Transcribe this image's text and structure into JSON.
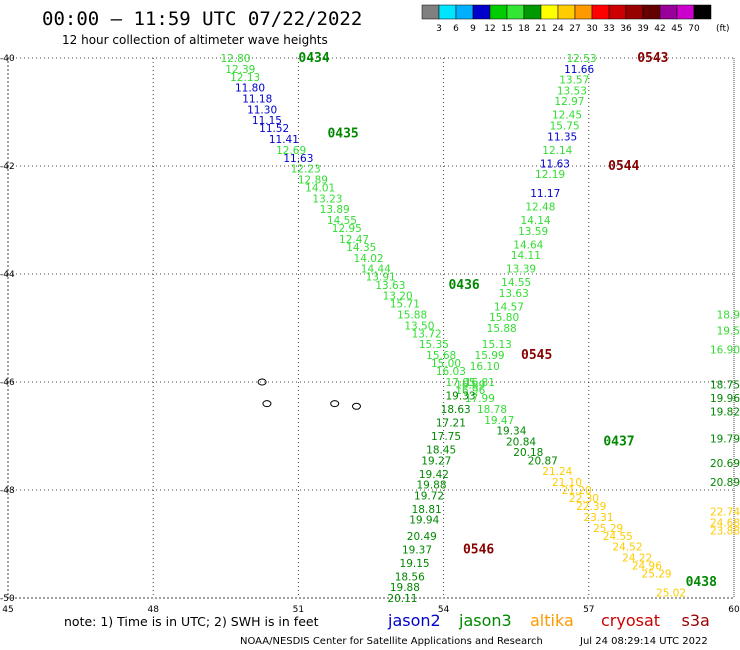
{
  "title": "00:00 – 11:59 UTC 07/22/2022",
  "subtitle": "12 hour collection of altimeter wave heights",
  "colorbar": {
    "ticks": [
      "3",
      "6",
      "9",
      "12",
      "15",
      "18",
      "21",
      "24",
      "27",
      "30",
      "33",
      "36",
      "39",
      "42",
      "45",
      "70"
    ],
    "unit": "(ft)",
    "colors": [
      "#808080",
      "#00e5ff",
      "#00b0ff",
      "#0000cc",
      "#00cc00",
      "#32e632",
      "#009900",
      "#ffff00",
      "#ffcc00",
      "#ff9900",
      "#ff0000",
      "#cc0000",
      "#990000",
      "#660000",
      "#990099",
      "#cc00cc",
      "#000000"
    ]
  },
  "axes": {
    "lat_labels": [
      "-40",
      "-42",
      "-44",
      "-46",
      "-48",
      "-50"
    ],
    "lon_labels": [
      "45",
      "48",
      "51",
      "54",
      "57",
      "60"
    ]
  },
  "note": "note: 1) Time is in UTC; 2) SWH is in feet",
  "satellites": [
    {
      "name": "jason2",
      "color": "#0000cc"
    },
    {
      "name": "jason3",
      "color": "#008800"
    },
    {
      "name": "altika",
      "color": "#ff9900"
    },
    {
      "name": "cryosat",
      "color": "#cc0000"
    },
    {
      "name": "s3a",
      "color": "#990000"
    }
  ],
  "footer": {
    "credit": "NOAA/NESDIS Center for Satellite Applications and Research",
    "timestamp": "Jul 24 08:29:14 UTC 2022"
  },
  "chart_data": {
    "type": "scatter",
    "passes": [
      {
        "label": "0434",
        "lat": -40.0,
        "lon": 51.0,
        "color": "#008800"
      },
      {
        "label": "0435",
        "lat": -41.4,
        "lon": 51.6,
        "color": "#008800"
      },
      {
        "label": "0436",
        "lat": -44.2,
        "lon": 54.1,
        "color": "#008800"
      },
      {
        "label": "0437",
        "lat": -47.1,
        "lon": 57.3,
        "color": "#008800"
      },
      {
        "label": "0438",
        "lat": -49.7,
        "lon": 59.0,
        "color": "#008800"
      },
      {
        "label": "0543",
        "lat": -40.0,
        "lon": 58.0,
        "color": "#880000"
      },
      {
        "label": "0544",
        "lat": -42.0,
        "lon": 57.4,
        "color": "#880000"
      },
      {
        "label": "0545",
        "lat": -45.5,
        "lon": 55.6,
        "color": "#880000"
      },
      {
        "label": "0546",
        "lat": -49.1,
        "lon": 54.4,
        "color": "#880000"
      }
    ],
    "points": [
      {
        "v": "12.80",
        "lat": -40.0,
        "lon": 49.7,
        "c": "#33dd33"
      },
      {
        "v": "12.39",
        "lat": -40.2,
        "lon": 49.8,
        "c": "#33dd33"
      },
      {
        "v": "12.13",
        "lat": -40.35,
        "lon": 49.9,
        "c": "#33dd33"
      },
      {
        "v": "11.80",
        "lat": -40.55,
        "lon": 50.0,
        "c": "#0000cc"
      },
      {
        "v": "11.18",
        "lat": -40.75,
        "lon": 50.15,
        "c": "#0000cc"
      },
      {
        "v": "11.30",
        "lat": -40.95,
        "lon": 50.25,
        "c": "#0000cc"
      },
      {
        "v": "11.15",
        "lat": -41.15,
        "lon": 50.35,
        "c": "#0000cc"
      },
      {
        "v": "11.52",
        "lat": -41.3,
        "lon": 50.5,
        "c": "#0000cc"
      },
      {
        "v": "11.41",
        "lat": -41.5,
        "lon": 50.7,
        "c": "#0000cc"
      },
      {
        "v": "12.69",
        "lat": -41.7,
        "lon": 50.85,
        "c": "#33dd33"
      },
      {
        "v": "11.63",
        "lat": -41.85,
        "lon": 51.0,
        "c": "#0000cc"
      },
      {
        "v": "12.23",
        "lat": -42.05,
        "lon": 51.15,
        "c": "#33dd33"
      },
      {
        "v": "12.89",
        "lat": -42.25,
        "lon": 51.3,
        "c": "#33dd33"
      },
      {
        "v": "14.01",
        "lat": -42.4,
        "lon": 51.45,
        "c": "#33dd33"
      },
      {
        "v": "13.23",
        "lat": -42.6,
        "lon": 51.6,
        "c": "#33dd33"
      },
      {
        "v": "13.89",
        "lat": -42.8,
        "lon": 51.75,
        "c": "#33dd33"
      },
      {
        "v": "14.55",
        "lat": -43.0,
        "lon": 51.9,
        "c": "#33dd33"
      },
      {
        "v": "12.95",
        "lat": -43.15,
        "lon": 52.0,
        "c": "#33dd33"
      },
      {
        "v": "12.47",
        "lat": -43.35,
        "lon": 52.15,
        "c": "#33dd33"
      },
      {
        "v": "14.35",
        "lat": -43.5,
        "lon": 52.3,
        "c": "#33dd33"
      },
      {
        "v": "14.02",
        "lat": -43.7,
        "lon": 52.45,
        "c": "#33dd33"
      },
      {
        "v": "14.44",
        "lat": -43.9,
        "lon": 52.6,
        "c": "#33dd33"
      },
      {
        "v": "13.91",
        "lat": -44.05,
        "lon": 52.7,
        "c": "#33dd33"
      },
      {
        "v": "13.63",
        "lat": -44.2,
        "lon": 52.9,
        "c": "#33dd33"
      },
      {
        "v": "13.20",
        "lat": -44.4,
        "lon": 53.05,
        "c": "#33dd33"
      },
      {
        "v": "15.71",
        "lat": -44.55,
        "lon": 53.2,
        "c": "#33dd33"
      },
      {
        "v": "15.88",
        "lat": -44.75,
        "lon": 53.35,
        "c": "#33dd33"
      },
      {
        "v": "13.50",
        "lat": -44.95,
        "lon": 53.5,
        "c": "#33dd33"
      },
      {
        "v": "13.72",
        "lat": -45.1,
        "lon": 53.65,
        "c": "#33dd33"
      },
      {
        "v": "15.35",
        "lat": -45.3,
        "lon": 53.8,
        "c": "#33dd33"
      },
      {
        "v": "15.68",
        "lat": -45.5,
        "lon": 53.95,
        "c": "#33dd33"
      },
      {
        "v": "15.00",
        "lat": -45.65,
        "lon": 54.05,
        "c": "#33dd33"
      },
      {
        "v": "16.03",
        "lat": -45.8,
        "lon": 54.15,
        "c": "#33dd33"
      },
      {
        "v": "17.05",
        "lat": -46.0,
        "lon": 54.35,
        "c": "#33dd33"
      },
      {
        "v": "16.96",
        "lat": -46.15,
        "lon": 54.55,
        "c": "#33dd33"
      },
      {
        "v": "17.99",
        "lat": -46.3,
        "lon": 54.75,
        "c": "#33dd33"
      },
      {
        "v": "18.78",
        "lat": -46.5,
        "lon": 55.0,
        "c": "#33dd33"
      },
      {
        "v": "19.47",
        "lat": -46.7,
        "lon": 55.15,
        "c": "#33dd33"
      },
      {
        "v": "19.34",
        "lat": -46.9,
        "lon": 55.4,
        "c": "#008800"
      },
      {
        "v": "20.84",
        "lat": -47.1,
        "lon": 55.6,
        "c": "#008800"
      },
      {
        "v": "20.18",
        "lat": -47.3,
        "lon": 55.75,
        "c": "#008800"
      },
      {
        "v": "20.87",
        "lat": -47.45,
        "lon": 56.05,
        "c": "#008800"
      },
      {
        "v": "21.24",
        "lat": -47.65,
        "lon": 56.35,
        "c": "#ffcc00"
      },
      {
        "v": "21.10",
        "lat": -47.85,
        "lon": 56.55,
        "c": "#ffcc00"
      },
      {
        "v": "21.20",
        "lat": -48.0,
        "lon": 56.75,
        "c": "#ffcc00"
      },
      {
        "v": "22.30",
        "lat": -48.15,
        "lon": 56.9,
        "c": "#ffcc00"
      },
      {
        "v": "22.39",
        "lat": -48.3,
        "lon": 57.05,
        "c": "#ffcc00"
      },
      {
        "v": "23.31",
        "lat": -48.5,
        "lon": 57.2,
        "c": "#ffcc00"
      },
      {
        "v": "25.29",
        "lat": -48.7,
        "lon": 57.4,
        "c": "#ffcc00"
      },
      {
        "v": "24.55",
        "lat": -48.85,
        "lon": 57.6,
        "c": "#ffcc00"
      },
      {
        "v": "24.52",
        "lat": -49.05,
        "lon": 57.8,
        "c": "#ffcc00"
      },
      {
        "v": "24.22",
        "lat": -49.25,
        "lon": 58.0,
        "c": "#ffcc00"
      },
      {
        "v": "24.96",
        "lat": -49.4,
        "lon": 58.2,
        "c": "#ffcc00"
      },
      {
        "v": "25.29",
        "lat": -49.55,
        "lon": 58.4,
        "c": "#ffcc00"
      },
      {
        "v": "25.02",
        "lat": -49.9,
        "lon": 58.7,
        "c": "#ffcc00"
      },
      {
        "v": "12.53",
        "lat": -40.0,
        "lon": 56.85,
        "c": "#33dd33"
      },
      {
        "v": "11.66",
        "lat": -40.2,
        "lon": 56.8,
        "c": "#0000cc"
      },
      {
        "v": "13.57",
        "lat": -40.4,
        "lon": 56.7,
        "c": "#33dd33"
      },
      {
        "v": "13.53",
        "lat": -40.6,
        "lon": 56.65,
        "c": "#33dd33"
      },
      {
        "v": "12.97",
        "lat": -40.8,
        "lon": 56.6,
        "c": "#33dd33"
      },
      {
        "v": "12.45",
        "lat": -41.05,
        "lon": 56.55,
        "c": "#33dd33"
      },
      {
        "v": "15.75",
        "lat": -41.25,
        "lon": 56.5,
        "c": "#33dd33"
      },
      {
        "v": "11.35",
        "lat": -41.45,
        "lon": 56.45,
        "c": "#0000cc"
      },
      {
        "v": "12.14",
        "lat": -41.7,
        "lon": 56.35,
        "c": "#33dd33"
      },
      {
        "v": "11.63",
        "lat": -41.95,
        "lon": 56.3,
        "c": "#0000cc"
      },
      {
        "v": "12.19",
        "lat": -42.15,
        "lon": 56.2,
        "c": "#33dd33"
      },
      {
        "v": "11.17",
        "lat": -42.5,
        "lon": 56.1,
        "c": "#0000cc"
      },
      {
        "v": "12.48",
        "lat": -42.75,
        "lon": 56.0,
        "c": "#33dd33"
      },
      {
        "v": "14.14",
        "lat": -43.0,
        "lon": 55.9,
        "c": "#33dd33"
      },
      {
        "v": "13.59",
        "lat": -43.2,
        "lon": 55.85,
        "c": "#33dd33"
      },
      {
        "v": "14.64",
        "lat": -43.45,
        "lon": 55.75,
        "c": "#33dd33"
      },
      {
        "v": "14.11",
        "lat": -43.65,
        "lon": 55.7,
        "c": "#33dd33"
      },
      {
        "v": "13.39",
        "lat": -43.9,
        "lon": 55.6,
        "c": "#33dd33"
      },
      {
        "v": "14.55",
        "lat": -44.15,
        "lon": 55.5,
        "c": "#33dd33"
      },
      {
        "v": "13.63",
        "lat": -44.35,
        "lon": 55.45,
        "c": "#33dd33"
      },
      {
        "v": "14.57",
        "lat": -44.6,
        "lon": 55.35,
        "c": "#33dd33"
      },
      {
        "v": "15.80",
        "lat": -44.8,
        "lon": 55.25,
        "c": "#33dd33"
      },
      {
        "v": "15.88",
        "lat": -45.0,
        "lon": 55.2,
        "c": "#33dd33"
      },
      {
        "v": "15.13",
        "lat": -45.3,
        "lon": 55.1,
        "c": "#33dd33"
      },
      {
        "v": "15.99",
        "lat": -45.5,
        "lon": 54.95,
        "c": "#33dd33"
      },
      {
        "v": "16.10",
        "lat": -45.7,
        "lon": 54.85,
        "c": "#33dd33"
      },
      {
        "v": "16.81",
        "lat": -46.0,
        "lon": 54.75,
        "c": "#33dd33"
      },
      {
        "v": "16.89",
        "lat": -46.05,
        "lon": 54.55,
        "c": "#33dd33"
      },
      {
        "v": "19.33",
        "lat": -46.25,
        "lon": 54.35,
        "c": "#008800"
      },
      {
        "v": "18.63",
        "lat": -46.5,
        "lon": 54.25,
        "c": "#008800"
      },
      {
        "v": "17.21",
        "lat": -46.75,
        "lon": 54.15,
        "c": "#008800"
      },
      {
        "v": "17.75",
        "lat": -47.0,
        "lon": 54.05,
        "c": "#008800"
      },
      {
        "v": "18.45",
        "lat": -47.25,
        "lon": 53.95,
        "c": "#008800"
      },
      {
        "v": "19.27",
        "lat": -47.45,
        "lon": 53.85,
        "c": "#008800"
      },
      {
        "v": "19.42",
        "lat": -47.7,
        "lon": 53.8,
        "c": "#008800"
      },
      {
        "v": "19.88",
        "lat": -47.9,
        "lon": 53.75,
        "c": "#008800"
      },
      {
        "v": "19.72",
        "lat": -48.1,
        "lon": 53.7,
        "c": "#008800"
      },
      {
        "v": "18.81",
        "lat": -48.35,
        "lon": 53.65,
        "c": "#008800"
      },
      {
        "v": "19.94",
        "lat": -48.55,
        "lon": 53.6,
        "c": "#008800"
      },
      {
        "v": "20.49",
        "lat": -48.85,
        "lon": 53.55,
        "c": "#008800"
      },
      {
        "v": "19.37",
        "lat": -49.1,
        "lon": 53.45,
        "c": "#008800"
      },
      {
        "v": "19.15",
        "lat": -49.35,
        "lon": 53.4,
        "c": "#008800"
      },
      {
        "v": "18.56",
        "lat": -49.6,
        "lon": 53.3,
        "c": "#008800"
      },
      {
        "v": "19.88",
        "lat": -49.8,
        "lon": 53.2,
        "c": "#008800"
      },
      {
        "v": "20.11",
        "lat": -50.0,
        "lon": 53.15,
        "c": "#008800"
      },
      {
        "v": "16.90",
        "lat": -45.4,
        "lon": 59.9,
        "c": "#33dd33"
      },
      {
        "v": "18.9",
        "lat": -44.75,
        "lon": 59.9,
        "c": "#33dd33"
      },
      {
        "v": "19.5",
        "lat": -45.05,
        "lon": 59.9,
        "c": "#33dd33"
      },
      {
        "v": "18.75",
        "lat": -46.05,
        "lon": 59.9,
        "c": "#008800"
      },
      {
        "v": "19.96",
        "lat": -46.3,
        "lon": 59.9,
        "c": "#008800"
      },
      {
        "v": "19.82",
        "lat": -46.55,
        "lon": 59.9,
        "c": "#008800"
      },
      {
        "v": "19.79",
        "lat": -47.05,
        "lon": 59.9,
        "c": "#008800"
      },
      {
        "v": "20.69",
        "lat": -47.5,
        "lon": 59.9,
        "c": "#008800"
      },
      {
        "v": "20.89",
        "lat": -47.85,
        "lon": 59.9,
        "c": "#008800"
      },
      {
        "v": "22.74",
        "lat": -48.4,
        "lon": 59.85,
        "c": "#ffcc00"
      },
      {
        "v": "24.68",
        "lat": -48.6,
        "lon": 59.85,
        "c": "#ffcc00"
      },
      {
        "v": "23.88",
        "lat": -48.75,
        "lon": 59.85,
        "c": "#ffcc00"
      }
    ],
    "islands": [
      {
        "lat": -46.0,
        "lon": 50.25
      },
      {
        "lat": -46.4,
        "lon": 50.35
      },
      {
        "lat": -46.4,
        "lon": 51.75
      },
      {
        "lat": -46.45,
        "lon": 52.2
      }
    ]
  }
}
